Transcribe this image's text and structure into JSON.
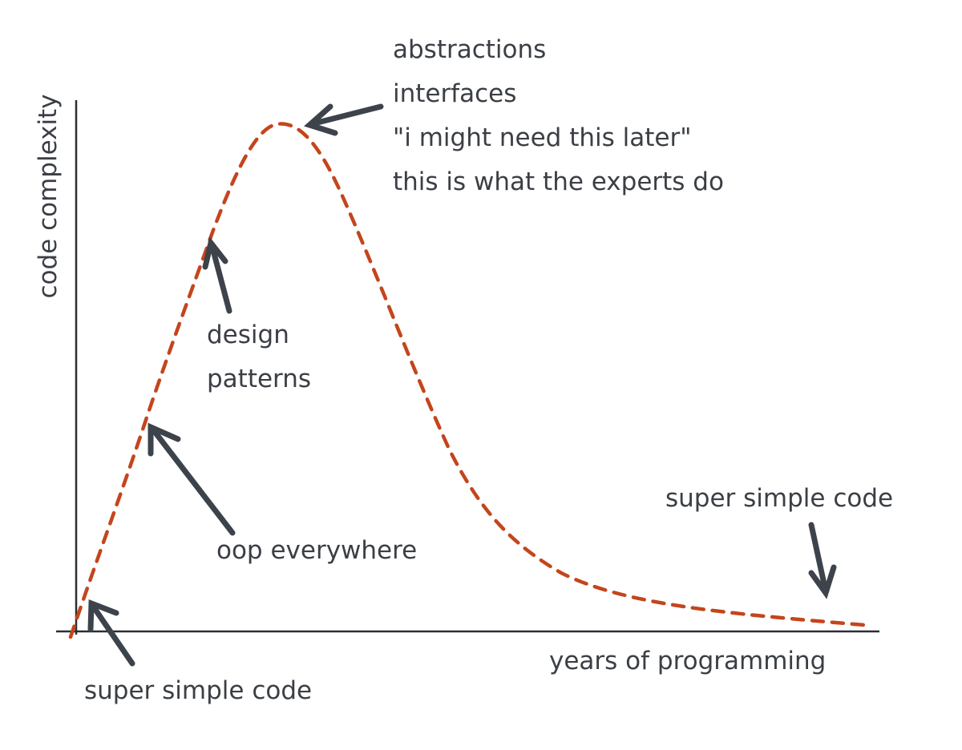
{
  "axes": {
    "y_label": "code complexity",
    "x_label": "years of programming"
  },
  "annotations": {
    "peak": [
      "abstractions",
      "interfaces",
      "\"i might need this later\"",
      "this is what the experts do"
    ],
    "design_patterns": [
      "design",
      "patterns"
    ],
    "oop": "oop everywhere",
    "start": "super simple code",
    "end": "super simple code"
  },
  "colors": {
    "curve": "#c4451c",
    "ink": "#3b3f45"
  }
}
